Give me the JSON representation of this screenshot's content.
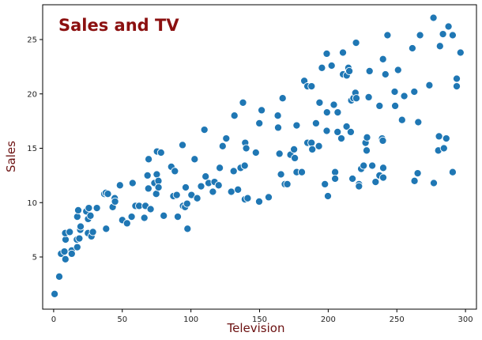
{
  "chart_data": {
    "type": "scatter",
    "title": "Sales and TV",
    "xlabel": "Television",
    "ylabel": "Sales",
    "xlim": [
      -8,
      308
    ],
    "ylim": [
      0.2,
      28.2
    ],
    "xticks": [
      0,
      50,
      100,
      150,
      200,
      250,
      300
    ],
    "yticks": [
      5,
      10,
      15,
      20,
      25
    ],
    "grid": false,
    "colors": {
      "point": "#1f77b4",
      "point_edge": "#ffffff",
      "title": "#8b1010",
      "axis_title": "#6b1010",
      "axis": "#000000"
    },
    "points": [
      [
        0.7,
        1.6
      ],
      [
        4.1,
        3.2
      ],
      [
        5.4,
        5.3
      ],
      [
        7.8,
        5.5
      ],
      [
        8.6,
        4.8
      ],
      [
        8.7,
        6.6
      ],
      [
        8.4,
        7.2
      ],
      [
        11.7,
        7.3
      ],
      [
        13.1,
        5.6
      ],
      [
        13.2,
        5.3
      ],
      [
        16.9,
        6.6
      ],
      [
        17.2,
        5.9
      ],
      [
        17.2,
        8.7
      ],
      [
        17.9,
        9.3
      ],
      [
        18.7,
        6.7
      ],
      [
        19.4,
        7.5
      ],
      [
        19.6,
        7.8
      ],
      [
        23.8,
        9.2
      ],
      [
        25.0,
        7.2
      ],
      [
        25.1,
        8.5
      ],
      [
        25.6,
        9.5
      ],
      [
        26.8,
        8.8
      ],
      [
        27.5,
        6.9
      ],
      [
        28.6,
        7.3
      ],
      [
        31.5,
        9.5
      ],
      [
        36.9,
        10.8
      ],
      [
        38.0,
        10.9
      ],
      [
        38.2,
        7.6
      ],
      [
        39.5,
        10.8
      ],
      [
        43.0,
        9.6
      ],
      [
        44.5,
        10.4
      ],
      [
        44.7,
        10.1
      ],
      [
        48.3,
        11.6
      ],
      [
        50.0,
        8.4
      ],
      [
        53.5,
        8.1
      ],
      [
        56.8,
        8.7
      ],
      [
        57.5,
        11.8
      ],
      [
        59.6,
        9.7
      ],
      [
        62.3,
        9.7
      ],
      [
        66.1,
        8.6
      ],
      [
        66.9,
        9.7
      ],
      [
        68.4,
        12.5
      ],
      [
        69.0,
        11.3
      ],
      [
        69.2,
        14.0
      ],
      [
        70.6,
        9.4
      ],
      [
        73.4,
        11.8
      ],
      [
        74.7,
        10.8
      ],
      [
        75.1,
        12.6
      ],
      [
        75.3,
        14.7
      ],
      [
        76.3,
        12.0
      ],
      [
        76.4,
        11.4
      ],
      [
        78.2,
        14.6
      ],
      [
        80.2,
        8.8
      ],
      [
        85.7,
        13.3
      ],
      [
        87.2,
        10.6
      ],
      [
        88.3,
        12.9
      ],
      [
        89.7,
        10.7
      ],
      [
        90.4,
        8.7
      ],
      [
        93.9,
        15.3
      ],
      [
        94.2,
        9.7
      ],
      [
        95.7,
        9.6
      ],
      [
        96.2,
        11.4
      ],
      [
        97.2,
        9.9
      ],
      [
        97.5,
        7.6
      ],
      [
        100.4,
        10.7
      ],
      [
        102.7,
        14.0
      ],
      [
        104.6,
        10.4
      ],
      [
        107.4,
        11.5
      ],
      [
        109.8,
        16.7
      ],
      [
        110.7,
        12.4
      ],
      [
        112.9,
        11.8
      ],
      [
        116.0,
        11.0
      ],
      [
        117.2,
        11.9
      ],
      [
        120.2,
        11.6
      ],
      [
        121.0,
        13.2
      ],
      [
        123.1,
        15.2
      ],
      [
        125.7,
        15.9
      ],
      [
        129.4,
        11.0
      ],
      [
        131.1,
        12.9
      ],
      [
        131.7,
        18.0
      ],
      [
        134.3,
        11.2
      ],
      [
        136.2,
        13.2
      ],
      [
        137.9,
        19.2
      ],
      [
        139.2,
        13.4
      ],
      [
        139.3,
        10.3
      ],
      [
        139.5,
        15.5
      ],
      [
        140.3,
        15.0
      ],
      [
        141.3,
        10.4
      ],
      [
        147.3,
        14.6
      ],
      [
        149.7,
        10.1
      ],
      [
        149.8,
        17.3
      ],
      [
        151.5,
        18.5
      ],
      [
        156.6,
        10.5
      ],
      [
        163.3,
        18.0
      ],
      [
        163.5,
        16.9
      ],
      [
        164.5,
        14.5
      ],
      [
        165.6,
        12.6
      ],
      [
        166.8,
        19.6
      ],
      [
        168.4,
        11.7
      ],
      [
        170.2,
        11.7
      ],
      [
        172.5,
        14.4
      ],
      [
        175.1,
        14.9
      ],
      [
        175.7,
        14.1
      ],
      [
        177.0,
        17.1
      ],
      [
        177.0,
        12.8
      ],
      [
        180.8,
        12.8
      ],
      [
        182.6,
        21.2
      ],
      [
        184.9,
        15.5
      ],
      [
        184.9,
        20.7
      ],
      [
        187.8,
        15.5
      ],
      [
        187.9,
        20.7
      ],
      [
        188.4,
        14.9
      ],
      [
        191.1,
        17.3
      ],
      [
        193.2,
        15.2
      ],
      [
        193.7,
        19.2
      ],
      [
        195.4,
        22.4
      ],
      [
        197.6,
        11.7
      ],
      [
        198.9,
        16.6
      ],
      [
        198.9,
        23.7
      ],
      [
        199.1,
        18.3
      ],
      [
        199.8,
        10.6
      ],
      [
        202.5,
        22.6
      ],
      [
        204.1,
        19.0
      ],
      [
        205.0,
        12.8
      ],
      [
        205.0,
        12.2
      ],
      [
        206.8,
        16.5
      ],
      [
        206.9,
        18.3
      ],
      [
        209.6,
        15.9
      ],
      [
        210.7,
        23.8
      ],
      [
        210.8,
        21.8
      ],
      [
        213.4,
        17.0
      ],
      [
        213.5,
        21.7
      ],
      [
        214.7,
        22.4
      ],
      [
        215.4,
        22.1
      ],
      [
        216.4,
        16.5
      ],
      [
        216.8,
        19.4
      ],
      [
        217.7,
        12.2
      ],
      [
        218.4,
        19.6
      ],
      [
        219.8,
        20.1
      ],
      [
        220.3,
        24.7
      ],
      [
        220.5,
        19.6
      ],
      [
        222.4,
        11.7
      ],
      [
        222.4,
        11.5
      ],
      [
        224.0,
        13.1
      ],
      [
        225.8,
        13.4
      ],
      [
        227.2,
        15.5
      ],
      [
        228.0,
        14.8
      ],
      [
        228.3,
        16.0
      ],
      [
        229.5,
        19.7
      ],
      [
        230.1,
        22.1
      ],
      [
        232.1,
        13.4
      ],
      [
        234.5,
        11.9
      ],
      [
        237.4,
        12.5
      ],
      [
        237.4,
        18.9
      ],
      [
        239.3,
        15.9
      ],
      [
        239.8,
        15.7
      ],
      [
        239.9,
        23.2
      ],
      [
        240.1,
        13.2
      ],
      [
        240.1,
        12.3
      ],
      [
        241.7,
        21.8
      ],
      [
        243.2,
        25.4
      ],
      [
        248.4,
        20.2
      ],
      [
        248.8,
        18.9
      ],
      [
        250.9,
        22.2
      ],
      [
        253.8,
        17.6
      ],
      [
        255.4,
        19.8
      ],
      [
        261.3,
        24.2
      ],
      [
        262.7,
        20.2
      ],
      [
        262.9,
        12.0
      ],
      [
        265.2,
        12.7
      ],
      [
        265.6,
        17.4
      ],
      [
        266.9,
        25.4
      ],
      [
        273.7,
        20.8
      ],
      [
        276.7,
        27.0
      ],
      [
        276.9,
        11.8
      ],
      [
        280.2,
        14.8
      ],
      [
        280.7,
        16.1
      ],
      [
        281.4,
        24.4
      ],
      [
        283.6,
        25.5
      ],
      [
        284.3,
        15.0
      ],
      [
        286.0,
        15.9
      ],
      [
        287.6,
        26.2
      ],
      [
        290.7,
        25.4
      ],
      [
        290.7,
        12.8
      ],
      [
        293.6,
        20.7
      ],
      [
        293.6,
        21.4
      ],
      [
        296.4,
        23.8
      ]
    ]
  }
}
